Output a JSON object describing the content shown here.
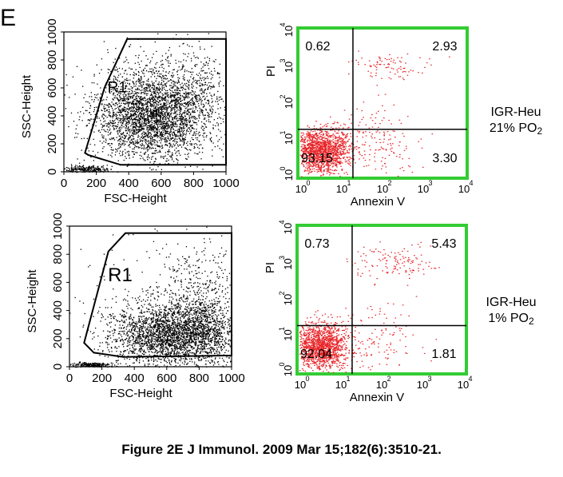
{
  "panel_letter": "E",
  "caption": "Figure 2E J Immunol. 2009 Mar 15;182(6):3510-21.",
  "colors": {
    "scatter": "#000000",
    "annexin_dots": "#e8262a",
    "annexin_frame": "#33cc33"
  },
  "chart_data": [
    {
      "type": "scatter",
      "name": "scatter-top",
      "xlabel": "FSC-Height",
      "ylabel": "SSC-Height",
      "xlim": [
        0,
        1000
      ],
      "ylim": [
        0,
        1000
      ],
      "xticks": [
        "0",
        "200",
        "400",
        "600",
        "800",
        "1000"
      ],
      "yticks": [
        "0",
        "200",
        "400",
        "600",
        "800",
        "1000"
      ],
      "gate_label": "R1",
      "gate": [
        [
          150,
          120
        ],
        [
          130,
          135
        ],
        [
          250,
          600
        ],
        [
          390,
          950
        ],
        [
          1000,
          950
        ],
        [
          1000,
          50
        ],
        [
          350,
          50
        ]
      ],
      "clusters": [
        {
          "cx": 520,
          "cy": 400,
          "sx": 170,
          "sy": 150,
          "n": 2600,
          "color": "#000000"
        },
        {
          "cx": 750,
          "cy": 520,
          "sx": 150,
          "sy": 180,
          "n": 700,
          "color": "#000000"
        },
        {
          "cx": 140,
          "cy": 20,
          "sx": 70,
          "sy": 12,
          "n": 260,
          "color": "#000000"
        },
        {
          "cx": 500,
          "cy": 500,
          "sx": 320,
          "sy": 320,
          "n": 250,
          "color": "#000000"
        }
      ]
    },
    {
      "type": "scatter",
      "name": "annexin-top",
      "xlabel": "Annexin V",
      "ylabel": "PI",
      "scale": "log",
      "xlim": [
        1,
        10000
      ],
      "ylim": [
        1,
        10000
      ],
      "x_decades": [
        "0",
        "1",
        "2",
        "3",
        "4"
      ],
      "y_decades": [
        "0",
        "1",
        "2",
        "3",
        "4"
      ],
      "tick_base": "10",
      "quadrant_divider": [
        20,
        20
      ],
      "quadrants": {
        "upper_left": "0.62",
        "upper_right": "2.93",
        "lower_left": "93.15",
        "lower_right": "3.30"
      },
      "side_label": {
        "line1": "IGR-Heu",
        "line2": "21% PO",
        "sub": "2"
      },
      "clusters": [
        {
          "cx": 0.55,
          "cy": 0.75,
          "sx": 0.32,
          "sy": 0.3,
          "n": 1500,
          "color": "#e8262a"
        },
        {
          "cx": 1.9,
          "cy": 0.95,
          "sx": 0.5,
          "sy": 0.45,
          "n": 170,
          "color": "#e8262a"
        },
        {
          "cx": 2.2,
          "cy": 3.0,
          "sx": 0.45,
          "sy": 0.2,
          "n": 90,
          "color": "#e8262a"
        }
      ]
    },
    {
      "type": "scatter",
      "name": "scatter-bottom",
      "xlabel": "FSC-Height",
      "ylabel": "SSC-Height",
      "xlim": [
        0,
        1000
      ],
      "ylim": [
        0,
        1000
      ],
      "xticks": [
        "0",
        "200",
        "400",
        "600",
        "800",
        "1000"
      ],
      "yticks": [
        "0",
        "200",
        "400",
        "600",
        "800",
        "1000"
      ],
      "gate_label": "R1",
      "gate": [
        [
          150,
          100
        ],
        [
          90,
          170
        ],
        [
          240,
          820
        ],
        [
          345,
          950
        ],
        [
          1000,
          950
        ],
        [
          1000,
          80
        ],
        [
          330,
          70
        ]
      ],
      "clusters": [
        {
          "cx": 640,
          "cy": 230,
          "sx": 200,
          "sy": 110,
          "n": 2700,
          "color": "#000000"
        },
        {
          "cx": 800,
          "cy": 420,
          "sx": 130,
          "sy": 220,
          "n": 650,
          "color": "#000000"
        },
        {
          "cx": 140,
          "cy": 15,
          "sx": 60,
          "sy": 10,
          "n": 240,
          "color": "#000000"
        },
        {
          "cx": 550,
          "cy": 450,
          "sx": 320,
          "sy": 320,
          "n": 200,
          "color": "#000000"
        }
      ]
    },
    {
      "type": "scatter",
      "name": "annexin-bottom",
      "xlabel": "Annexin V",
      "ylabel": "PI",
      "scale": "log",
      "xlim": [
        1,
        10000
      ],
      "ylim": [
        1,
        10000
      ],
      "x_decades": [
        "0",
        "1",
        "2",
        "3",
        "4"
      ],
      "y_decades": [
        "0",
        "1",
        "2",
        "3",
        "4"
      ],
      "tick_base": "10",
      "quadrant_divider": [
        20,
        20
      ],
      "quadrants": {
        "upper_left": "0.73",
        "upper_right": "5.43",
        "lower_left": "92.04",
        "lower_right": "1.81"
      },
      "side_label": {
        "line1": "IGR-Heu",
        "line2": "1% PO",
        "sub": "2"
      },
      "clusters": [
        {
          "cx": 0.55,
          "cy": 0.75,
          "sx": 0.32,
          "sy": 0.3,
          "n": 1450,
          "color": "#e8262a"
        },
        {
          "cx": 1.9,
          "cy": 1.0,
          "sx": 0.5,
          "sy": 0.45,
          "n": 130,
          "color": "#e8262a"
        },
        {
          "cx": 2.2,
          "cy": 3.0,
          "sx": 0.45,
          "sy": 0.22,
          "n": 130,
          "color": "#e8262a"
        }
      ]
    }
  ]
}
